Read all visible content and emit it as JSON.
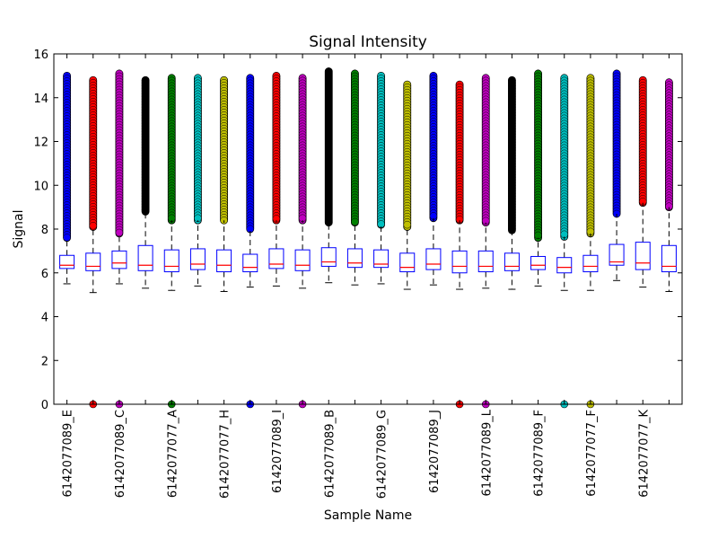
{
  "chart_data": {
    "type": "box",
    "title": "Signal Intensity",
    "xlabel": "Sample Name",
    "ylabel": "Signal",
    "ylim": [
      0,
      16
    ],
    "yticks": [
      0,
      2,
      4,
      6,
      8,
      10,
      12,
      14,
      16
    ],
    "grid": false,
    "legend": "none",
    "colors": {
      "box": "#0000ff",
      "median": "#ff0000",
      "whisker": "#000000"
    },
    "outlier_colors": [
      "#0000ff",
      "#ff0000",
      "#bf00bf",
      "#000000",
      "#007f00",
      "#00bfbf",
      "#bfbf00"
    ],
    "tick_labels": [
      "6142077089_E",
      "6142077089_C",
      "6142077077_A",
      "6142077077_H",
      "6142077089_I",
      "6142077089_B",
      "6142077089_G",
      "6142077089_J",
      "6142077089_L",
      "6142077089_F",
      "6142077077_F",
      "6142077077_K"
    ],
    "boxes": [
      {
        "q1": 6.2,
        "median": 6.35,
        "q3": 6.8,
        "whisker_low": 5.5,
        "whisker_high": 7.6,
        "outlier_high": [
          7.6,
          15.0
        ],
        "outlier_low": []
      },
      {
        "q1": 6.1,
        "median": 6.3,
        "q3": 6.9,
        "whisker_low": 5.1,
        "whisker_high": 8.1,
        "outlier_high": [
          8.1,
          14.8
        ],
        "outlier_low": [
          0
        ]
      },
      {
        "q1": 6.2,
        "median": 6.45,
        "q3": 7.0,
        "whisker_low": 5.5,
        "whisker_high": 7.8,
        "outlier_high": [
          7.8,
          15.1
        ],
        "outlier_low": [
          0
        ]
      },
      {
        "q1": 6.1,
        "median": 6.35,
        "q3": 7.25,
        "whisker_low": 5.3,
        "whisker_high": 8.8,
        "outlier_high": [
          8.8,
          14.8
        ],
        "outlier_low": []
      },
      {
        "q1": 6.05,
        "median": 6.3,
        "q3": 7.05,
        "whisker_low": 5.2,
        "whisker_high": 8.4,
        "outlier_high": [
          8.4,
          14.9
        ],
        "outlier_low": [
          0
        ]
      },
      {
        "q1": 6.15,
        "median": 6.4,
        "q3": 7.1,
        "whisker_low": 5.4,
        "whisker_high": 8.4,
        "outlier_high": [
          8.4,
          14.9
        ],
        "outlier_low": []
      },
      {
        "q1": 6.05,
        "median": 6.35,
        "q3": 7.05,
        "whisker_low": 5.15,
        "whisker_high": 8.4,
        "outlier_high": [
          8.4,
          14.8
        ],
        "outlier_low": []
      },
      {
        "q1": 6.05,
        "median": 6.25,
        "q3": 6.85,
        "whisker_low": 5.35,
        "whisker_high": 8.0,
        "outlier_high": [
          8.0,
          14.9
        ],
        "outlier_low": [
          0
        ]
      },
      {
        "q1": 6.2,
        "median": 6.4,
        "q3": 7.1,
        "whisker_low": 5.4,
        "whisker_high": 8.4,
        "outlier_high": [
          8.4,
          15.0
        ],
        "outlier_low": []
      },
      {
        "q1": 6.1,
        "median": 6.35,
        "q3": 7.05,
        "whisker_low": 5.3,
        "whisker_high": 8.4,
        "outlier_high": [
          8.4,
          14.9
        ],
        "outlier_low": [
          0
        ]
      },
      {
        "q1": 6.3,
        "median": 6.5,
        "q3": 7.15,
        "whisker_low": 5.55,
        "whisker_high": 8.3,
        "outlier_high": [
          8.3,
          15.2
        ],
        "outlier_low": []
      },
      {
        "q1": 6.25,
        "median": 6.45,
        "q3": 7.1,
        "whisker_low": 5.45,
        "whisker_high": 8.3,
        "outlier_high": [
          8.3,
          15.1
        ],
        "outlier_low": []
      },
      {
        "q1": 6.25,
        "median": 6.4,
        "q3": 7.05,
        "whisker_low": 5.5,
        "whisker_high": 8.2,
        "outlier_high": [
          8.2,
          15.0
        ],
        "outlier_low": []
      },
      {
        "q1": 6.05,
        "median": 6.25,
        "q3": 6.9,
        "whisker_low": 5.25,
        "whisker_high": 8.1,
        "outlier_high": [
          8.1,
          14.6
        ],
        "outlier_low": []
      },
      {
        "q1": 6.15,
        "median": 6.4,
        "q3": 7.1,
        "whisker_low": 5.45,
        "whisker_high": 8.5,
        "outlier_high": [
          8.5,
          15.0
        ],
        "outlier_low": []
      },
      {
        "q1": 6.0,
        "median": 6.3,
        "q3": 7.0,
        "whisker_low": 5.25,
        "whisker_high": 8.4,
        "outlier_high": [
          8.4,
          14.6
        ],
        "outlier_low": [
          0
        ]
      },
      {
        "q1": 6.05,
        "median": 6.3,
        "q3": 7.0,
        "whisker_low": 5.3,
        "whisker_high": 8.3,
        "outlier_high": [
          8.3,
          14.9
        ],
        "outlier_low": [
          0
        ]
      },
      {
        "q1": 6.1,
        "median": 6.3,
        "q3": 6.9,
        "whisker_low": 5.25,
        "whisker_high": 7.95,
        "outlier_high": [
          7.95,
          14.8
        ],
        "outlier_low": []
      },
      {
        "q1": 6.15,
        "median": 6.35,
        "q3": 6.75,
        "whisker_low": 5.4,
        "whisker_high": 7.6,
        "outlier_high": [
          7.6,
          15.1
        ],
        "outlier_low": []
      },
      {
        "q1": 6.0,
        "median": 6.25,
        "q3": 6.7,
        "whisker_low": 5.2,
        "whisker_high": 7.65,
        "outlier_high": [
          7.65,
          14.9
        ],
        "outlier_low": [
          0
        ]
      },
      {
        "q1": 6.05,
        "median": 6.3,
        "q3": 6.8,
        "whisker_low": 5.2,
        "whisker_high": 7.8,
        "outlier_high": [
          7.8,
          14.9
        ],
        "outlier_low": [
          0
        ]
      },
      {
        "q1": 6.35,
        "median": 6.5,
        "q3": 7.3,
        "whisker_low": 5.65,
        "whisker_high": 8.7,
        "outlier_high": [
          8.7,
          15.1
        ],
        "outlier_low": []
      },
      {
        "q1": 6.15,
        "median": 6.45,
        "q3": 7.4,
        "whisker_low": 5.35,
        "whisker_high": 9.2,
        "outlier_high": [
          9.2,
          14.8
        ],
        "outlier_low": []
      },
      {
        "q1": 6.05,
        "median": 6.3,
        "q3": 7.25,
        "whisker_low": 5.15,
        "whisker_high": 9.0,
        "outlier_high": [
          9.0,
          14.7
        ],
        "outlier_low": []
      }
    ]
  }
}
